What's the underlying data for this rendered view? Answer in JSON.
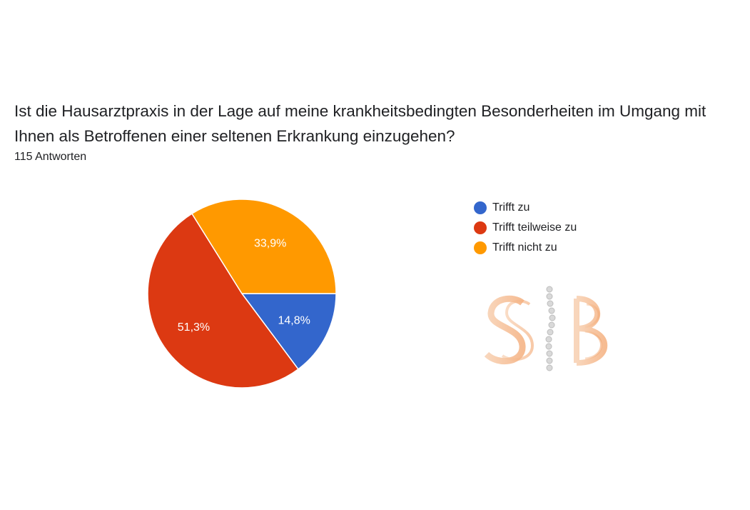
{
  "header": {
    "title": "Ist die Hausarztpraxis in der Lage auf meine krankheitsbedingten Besonderheiten im Umgang mit Ihnen als Betroffenen einer seltenen Erkrankung einzugehen?",
    "responses": "115 Antworten"
  },
  "chart_data": {
    "type": "pie",
    "title": "Ist die Hausarztpraxis in der Lage auf meine krankheitsbedingten Besonderheiten im Umgang mit Ihnen als Betroffenen einer seltenen Erkrankung einzugehen?",
    "subtitle": "115 Antworten",
    "legend_position": "right",
    "slices": [
      {
        "label": "Trifft zu",
        "value": 14.8,
        "display": "14,8%",
        "color": "#3366cc"
      },
      {
        "label": "Trifft teilweise zu",
        "value": 51.3,
        "display": "51,3%",
        "color": "#dc3912"
      },
      {
        "label": "Trifft nicht zu",
        "value": 33.9,
        "display": "33,9%",
        "color": "#ff9900"
      }
    ]
  },
  "watermark": {
    "text": "SB",
    "icon": "sb-logo-icon"
  }
}
